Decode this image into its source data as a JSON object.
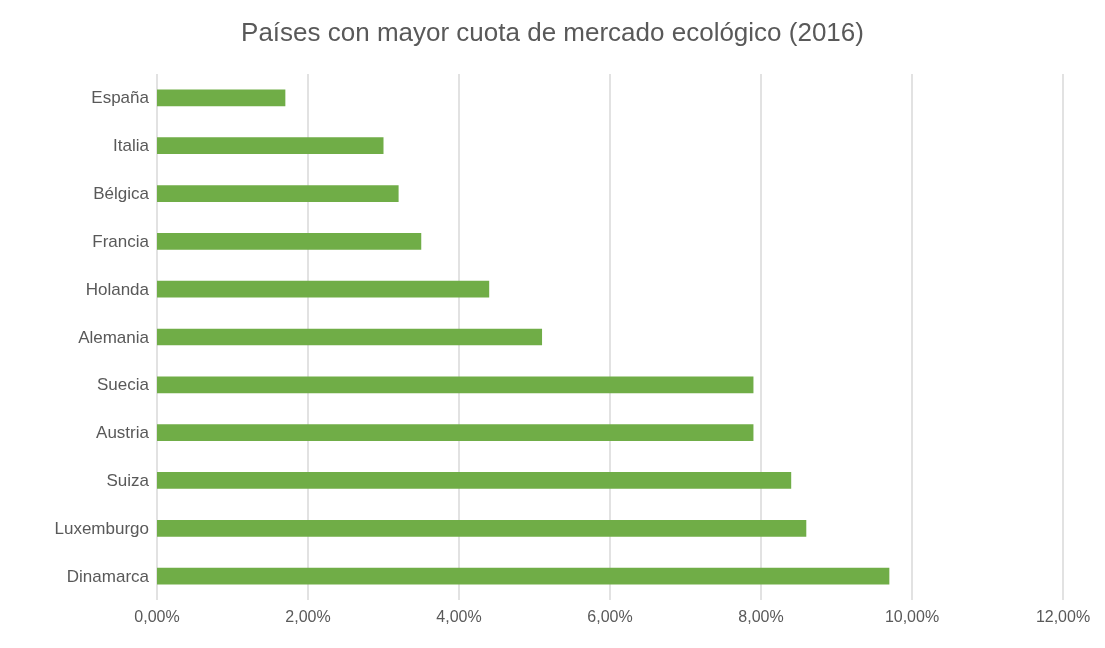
{
  "chart_data": {
    "type": "bar",
    "orientation": "horizontal",
    "title": "Países con mayor cuota de mercado ecológico (2016)",
    "categories": [
      "España",
      "Italia",
      "Bélgica",
      "Francia",
      "Holanda",
      "Alemania",
      "Suecia",
      "Austria",
      "Suiza",
      "Luxemburgo",
      "Dinamarca"
    ],
    "values": [
      1.7,
      3.0,
      3.2,
      3.5,
      4.4,
      5.1,
      7.9,
      7.9,
      8.4,
      8.6,
      9.7
    ],
    "color": "#70ad47",
    "xlim": [
      0,
      12
    ],
    "xticks": [
      {
        "value": 0,
        "label": "0,00%"
      },
      {
        "value": 2,
        "label": "2,00%"
      },
      {
        "value": 4,
        "label": "4,00%"
      },
      {
        "value": 6,
        "label": "6,00%"
      },
      {
        "value": 8,
        "label": "8,00%"
      },
      {
        "value": 10,
        "label": "10,00%"
      },
      {
        "value": 12,
        "label": "12,00%"
      }
    ],
    "grid": "x"
  }
}
